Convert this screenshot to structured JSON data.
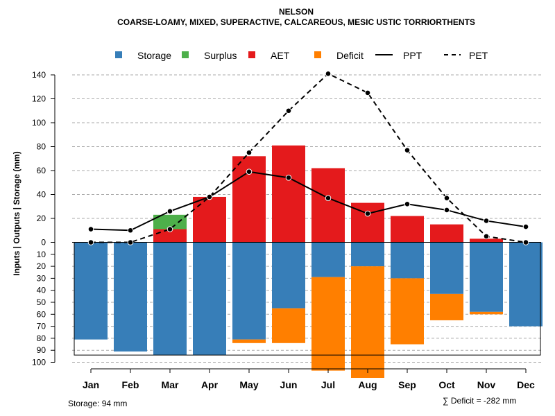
{
  "chart_data": {
    "type": "bar",
    "title": "NELSON",
    "subtitle": "COARSE-LOAMY, MIXED, SUPERACTIVE, CALCAREOUS, MESIC USTIC TORRIORTHENTS",
    "ylabel": "Inputs | Outputs | Storage    (mm)",
    "categories": [
      "Jan",
      "Feb",
      "Mar",
      "Apr",
      "May",
      "Jun",
      "Jul",
      "Aug",
      "Sep",
      "Oct",
      "Nov",
      "Dec"
    ],
    "upper_ticks": [
      0,
      20,
      40,
      60,
      80,
      100,
      120,
      140
    ],
    "lower_ticks": [
      0,
      10,
      20,
      30,
      40,
      50,
      60,
      70,
      80,
      90,
      100
    ],
    "upper_ylim": [
      0,
      140
    ],
    "lower_ylim": [
      0,
      100
    ],
    "storage_capacity": 94,
    "legend": {
      "storage": "Storage",
      "surplus": "Surplus",
      "aet": "AET",
      "deficit": "Deficit",
      "ppt": "PPT",
      "pet": "PET"
    },
    "colors": {
      "storage": "#377eb8",
      "surplus": "#4daf4a",
      "aet": "#e41a1c",
      "deficit": "#ff7f00",
      "line": "#000000",
      "grid": "#aaaaaa"
    },
    "series": [
      {
        "name": "AET",
        "values": [
          0,
          0,
          11,
          38,
          72,
          81,
          62,
          33,
          22,
          15,
          3,
          0
        ]
      },
      {
        "name": "Surplus",
        "values": [
          0,
          0,
          12,
          0,
          0,
          0,
          0,
          0,
          0,
          0,
          0,
          0
        ]
      },
      {
        "name": "Storage",
        "values": [
          81,
          91,
          94,
          94,
          81,
          55,
          29,
          20,
          30,
          43,
          58,
          70
        ]
      },
      {
        "name": "Deficit",
        "values": [
          0,
          0,
          0,
          0,
          3,
          29,
          78,
          93,
          55,
          22,
          2,
          0
        ]
      },
      {
        "name": "PPT",
        "values": [
          11,
          10,
          26,
          38,
          59,
          54,
          37,
          24,
          32,
          27,
          18,
          13
        ]
      },
      {
        "name": "PET",
        "values": [
          0,
          0,
          11,
          38,
          75,
          110,
          141,
          125,
          77,
          37,
          5,
          0
        ]
      }
    ],
    "storage_note": "Storage: 94 mm",
    "deficit_note": "∑ Deficit = -282 mm"
  }
}
